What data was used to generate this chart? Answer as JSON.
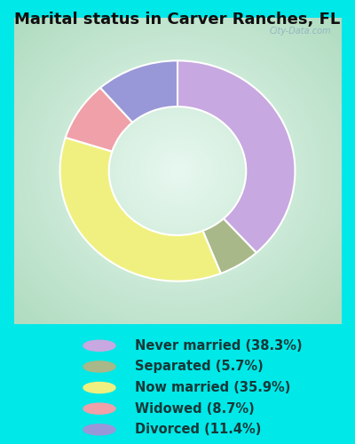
{
  "title": "Marital status in Carver Ranches, FL",
  "slices": [
    {
      "label": "Never married (38.3%)",
      "value": 38.3,
      "color": "#c8a8e0"
    },
    {
      "label": "Separated (5.7%)",
      "value": 5.7,
      "color": "#a8b888"
    },
    {
      "label": "Now married (35.9%)",
      "value": 35.9,
      "color": "#f0f080"
    },
    {
      "label": "Widowed (8.7%)",
      "value": 8.7,
      "color": "#f0a0a8"
    },
    {
      "label": "Divorced (11.4%)",
      "value": 11.4,
      "color": "#9898d8"
    }
  ],
  "bg_outer": "#00e8e8",
  "bg_chart_edge": "#b8e8c8",
  "bg_chart_center": "#e8f8f0",
  "title_color": "#101010",
  "title_fontsize": 13,
  "legend_fontsize": 10.5,
  "legend_text_color": "#183838",
  "watermark": "City-Data.com",
  "watermark_color": "#90b0c0",
  "donut_width": 0.38,
  "startangle": 90
}
